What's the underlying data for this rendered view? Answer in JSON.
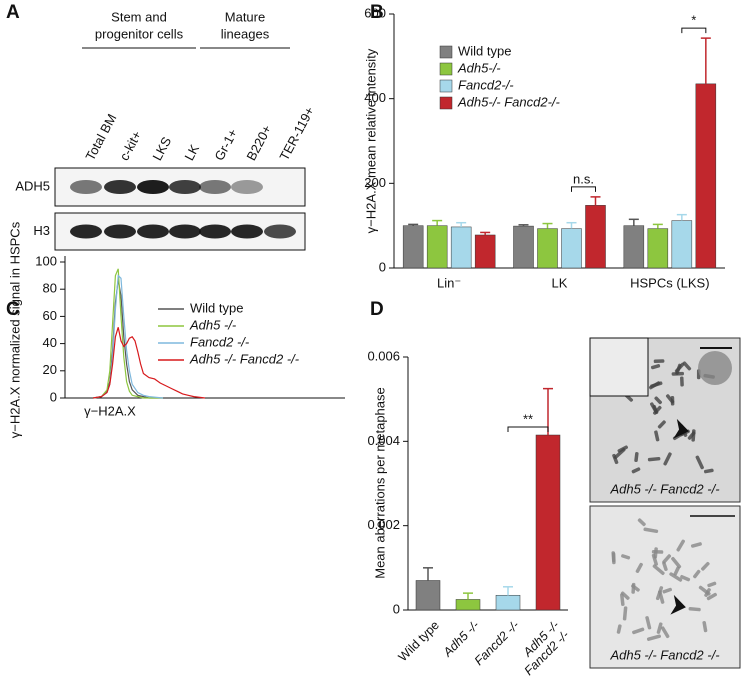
{
  "panel_labels": [
    "A",
    "B",
    "C",
    "D"
  ],
  "blot": {
    "groups": [
      [
        "Stem and",
        "progenitor cells"
      ],
      [
        "Mature",
        "lineages"
      ]
    ],
    "lanes": [
      "Total BM",
      "c-kit+",
      "LKS",
      "LK",
      "Gr-1+",
      "B220+",
      "TER-119+"
    ],
    "rows": [
      "ADH5",
      "H3"
    ]
  },
  "chart_data": [
    {
      "type": "bar",
      "ylabel": "γ−H2A.X mean relative intensity",
      "categories": [
        "Lin⁻",
        "LK",
        "HSPCs (LKS)"
      ],
      "series": [
        {
          "name": "Wild type",
          "color": "#808080",
          "values": [
            100,
            99,
            100
          ],
          "errors": [
            3,
            3,
            15
          ]
        },
        {
          "name": "Adh5-/-",
          "color": "#8dc63f",
          "values": [
            100,
            93,
            93
          ],
          "errors": [
            12,
            12,
            10
          ]
        },
        {
          "name": "Fancd2-/-",
          "color": "#a6d8ea",
          "values": [
            97,
            93,
            112
          ],
          "errors": [
            10,
            14,
            14
          ]
        },
        {
          "name": "Adh5-/- Fancd2-/-",
          "color": "#c1272d",
          "values": [
            78,
            148,
            435
          ],
          "errors": [
            6,
            20,
            108
          ]
        }
      ],
      "ylim": [
        0,
        600
      ],
      "yticks": [
        0,
        200,
        400,
        600
      ],
      "legend": "upper left",
      "annotations": [
        "n.s.",
        "*"
      ]
    },
    {
      "type": "line",
      "xlabel": "γ−H2A.X",
      "ylabel": "γ−H2A.X normalized signal in HSPCs",
      "xlim": [
        0,
        100
      ],
      "ylim": [
        0,
        100
      ],
      "yticks": [
        0,
        20,
        40,
        60,
        80,
        100
      ],
      "legend": "right",
      "series": [
        {
          "name": "Wild type",
          "color": "#555555",
          "x": [
            10,
            13,
            15,
            16,
            17,
            18,
            19,
            20,
            21,
            22,
            23,
            24,
            26,
            28,
            30,
            35
          ],
          "values": [
            0,
            1,
            5,
            12,
            35,
            70,
            87,
            75,
            45,
            25,
            12,
            6,
            2,
            1,
            0,
            0
          ]
        },
        {
          "name": "Adh5 -/-",
          "color": "#8dc63f",
          "x": [
            10,
            13,
            15,
            16,
            17,
            18,
            19,
            20,
            21,
            22,
            23,
            24,
            26,
            28,
            30,
            35
          ],
          "values": [
            0,
            1,
            6,
            20,
            55,
            90,
            95,
            60,
            30,
            12,
            5,
            2,
            1,
            0,
            0,
            0
          ]
        },
        {
          "name": "Fancd2 -/-",
          "color": "#7fb8dd",
          "x": [
            10,
            13,
            15,
            16,
            17,
            18,
            19,
            20,
            21,
            22,
            23,
            24,
            26,
            28,
            30,
            35
          ],
          "values": [
            0,
            1,
            4,
            10,
            30,
            65,
            90,
            88,
            60,
            35,
            20,
            10,
            4,
            2,
            1,
            0
          ]
        },
        {
          "name": "Adh5 -/- Fancd2 -/-",
          "color": "#d7191c",
          "x": [
            10,
            13,
            15,
            16,
            17,
            18,
            19,
            20,
            21,
            22,
            23,
            24,
            25,
            26,
            27,
            28,
            30,
            32,
            34,
            36,
            38,
            40,
            42,
            44,
            46,
            50
          ],
          "values": [
            0,
            1,
            4,
            10,
            25,
            45,
            52,
            42,
            38,
            40,
            44,
            45,
            42,
            34,
            25,
            18,
            15,
            14,
            11,
            9,
            7,
            5,
            3,
            2,
            1,
            0
          ]
        }
      ]
    },
    {
      "type": "bar",
      "ylabel": "Mean aberrations per metaphase",
      "categories": [
        "Wild type",
        "Adh5 -/-",
        "Fancd2 -/-",
        "Adh5 -/- Fancd2 -/-"
      ],
      "values": [
        0.0007,
        0.00025,
        0.00035,
        0.00415
      ],
      "errors": [
        0.0003,
        0.00015,
        0.0002,
        0.0011
      ],
      "colors": [
        "#808080",
        "#8dc63f",
        "#a6d8ea",
        "#c1272d"
      ],
      "ylim": [
        0,
        0.006
      ],
      "yticks": [
        0,
        0.002,
        0.004,
        0.006
      ],
      "annotations": [
        "**"
      ]
    }
  ],
  "micrographs": [
    {
      "caption": "Adh5 -/- Fancd2 -/-"
    },
    {
      "caption": "Adh5 -/- Fancd2 -/-"
    }
  ]
}
